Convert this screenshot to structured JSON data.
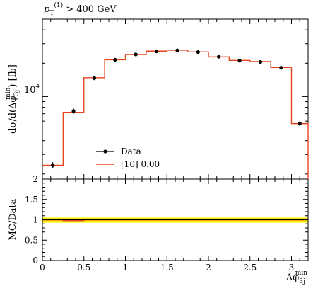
{
  "chart_data": [
    {
      "type": "line",
      "subtype": "histogram",
      "title": "",
      "annotation": {
        "main": "p",
        "sub": "T",
        "sup": "(1)",
        "rest": " > 400 GeV"
      },
      "ylabel": "dσ/d(Δφ",
      "ylabel_sub": "3j",
      "ylabel_sup": "min",
      "ylabel_tail": ") [fb]",
      "yscale": "log",
      "ylim": [
        1800,
        50000
      ],
      "ytick_labels": [
        {
          "value": 10000,
          "base": "10",
          "exp": "4"
        }
      ],
      "xlim": [
        0,
        3.2
      ],
      "bin_edges": [
        0,
        0.25,
        0.5,
        0.75,
        1.0,
        1.25,
        1.5,
        1.75,
        2.0,
        2.25,
        2.5,
        2.75,
        3.0,
        3.2
      ],
      "series": [
        {
          "name": "Data",
          "color": "#000000",
          "style": "points",
          "x": [
            0.125,
            0.375,
            0.625,
            0.875,
            1.125,
            1.375,
            1.625,
            1.875,
            2.125,
            2.375,
            2.625,
            2.875,
            3.1
          ],
          "y": [
            2400,
            7400,
            14700,
            21500,
            24000,
            25600,
            26100,
            25200,
            22900,
            21100,
            20500,
            18200,
            5700
          ],
          "yerr": [
            150,
            400,
            650,
            800,
            900,
            950,
            950,
            950,
            850,
            800,
            800,
            700,
            300
          ]
        },
        {
          "name": "[10] 0.00",
          "color": "#e8431f",
          "style": "step",
          "values": [
            2400,
            7200,
            14800,
            21500,
            24000,
            25700,
            26200,
            25300,
            22800,
            21200,
            20700,
            18300,
            5700
          ]
        }
      ],
      "legend": {
        "placement": "bottom-left"
      }
    },
    {
      "type": "line",
      "subtype": "ratio",
      "ylabel": "MC/Data",
      "ylim": [
        0,
        2
      ],
      "yticks": [
        0,
        0.5,
        1,
        1.5,
        2
      ],
      "ytick_labels": [
        "0",
        "0.5",
        "1",
        "1.5",
        "2"
      ],
      "xlim": [
        0,
        3.2
      ],
      "xticks": [
        0,
        0.5,
        1,
        1.5,
        2,
        2.5,
        3
      ],
      "xtick_labels": [
        "0",
        "0.5",
        "1",
        "1.5",
        "2",
        "2.5",
        "3"
      ],
      "xlabel": "Δφ",
      "xlabel_sub": "3j",
      "xlabel_sup": "min",
      "ratio_values": [
        1.0,
        0.98,
        1.0,
        1.0,
        1.0,
        1.0,
        1.0,
        1.0,
        1.0,
        1.0,
        1.0,
        1.0,
        1.0
      ],
      "band_inner": 0.04,
      "band_outer": 0.08,
      "band_color_inner": "#f5d800",
      "band_color_outer": "#ffff66"
    }
  ]
}
